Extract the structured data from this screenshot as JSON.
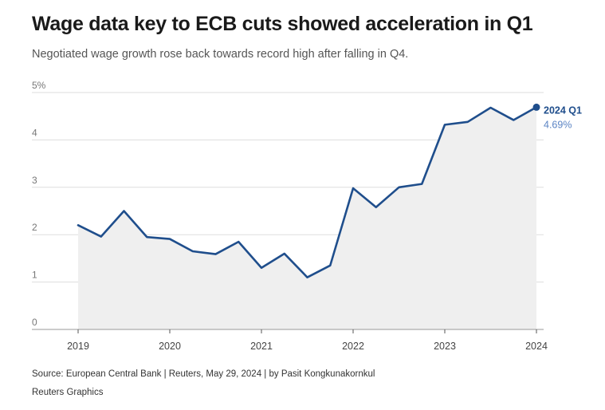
{
  "header": {
    "title": "Wage data key to ECB cuts showed acceleration in Q1",
    "subtitle": "Negotiated wage growth rose back towards record high after falling in Q4."
  },
  "chart_data": {
    "type": "area",
    "title": "Wage data key to ECB cuts showed acceleration in Q1",
    "subtitle": "Negotiated wage growth rose back towards record high after falling in Q4.",
    "xlabel": "",
    "ylabel": "",
    "series_name": "Negotiated wage growth",
    "x": [
      2019.0,
      2019.25,
      2019.5,
      2019.75,
      2020.0,
      2020.25,
      2020.5,
      2020.75,
      2021.0,
      2021.25,
      2021.5,
      2021.75,
      2022.0,
      2022.25,
      2022.5,
      2022.75,
      2023.0,
      2023.25,
      2023.5,
      2023.75,
      2024.0
    ],
    "values": [
      2.2,
      1.96,
      2.5,
      1.95,
      1.91,
      1.65,
      1.59,
      1.85,
      1.3,
      1.6,
      1.1,
      1.35,
      2.98,
      2.58,
      3.0,
      3.07,
      4.32,
      4.38,
      4.68,
      4.42,
      4.69
    ],
    "xlim": [
      2018.5,
      2024.05
    ],
    "ylim": [
      0,
      5
    ],
    "x_ticks": [
      2019,
      2020,
      2021,
      2022,
      2023,
      2024
    ],
    "x_tick_labels": [
      "2019",
      "2020",
      "2021",
      "2022",
      "2023",
      "2024"
    ],
    "y_ticks": [
      0,
      1,
      2,
      3,
      4,
      5
    ],
    "y_tick_labels": [
      "0",
      "1",
      "2",
      "3",
      "4",
      "5%"
    ],
    "grid": true,
    "end_annotation": {
      "label": "2024 Q1",
      "value_text": "4.69%"
    },
    "colors": {
      "line": "#1f4e8c",
      "area": "#efefef",
      "end_value": "#5b84c4",
      "grid": "#dddddd",
      "axis": "#999999"
    }
  },
  "footer": {
    "source": "Source: European Central Bank | Reuters, May 29, 2024 | by Pasit Kongkunakornkul",
    "credit": "Reuters Graphics"
  }
}
